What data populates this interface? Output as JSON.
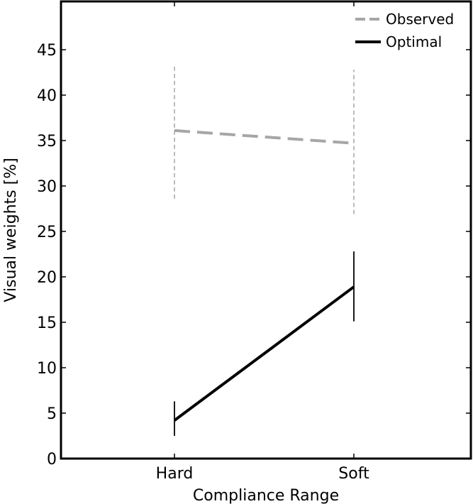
{
  "chart_data": {
    "type": "line",
    "xlabel": "Compliance Range",
    "ylabel": "Visual weights [%]",
    "categories": [
      "Hard",
      "Soft"
    ],
    "ylim": [
      0,
      50
    ],
    "yticks": [
      0,
      5,
      10,
      15,
      20,
      25,
      30,
      35,
      40,
      45
    ],
    "grid": false,
    "legend": {
      "position": "top-right"
    },
    "series": [
      {
        "name": "Observed",
        "values": [
          36.1,
          34.7
        ],
        "error_low": [
          28.6,
          26.9
        ],
        "error_high": [
          43.2,
          42.8
        ],
        "color": "#a6a6a6",
        "style": "dashed"
      },
      {
        "name": "Optimal",
        "values": [
          4.2,
          18.9
        ],
        "error_low": [
          2.5,
          15.1
        ],
        "error_high": [
          6.3,
          22.8
        ],
        "color": "#000000",
        "style": "solid"
      }
    ]
  }
}
